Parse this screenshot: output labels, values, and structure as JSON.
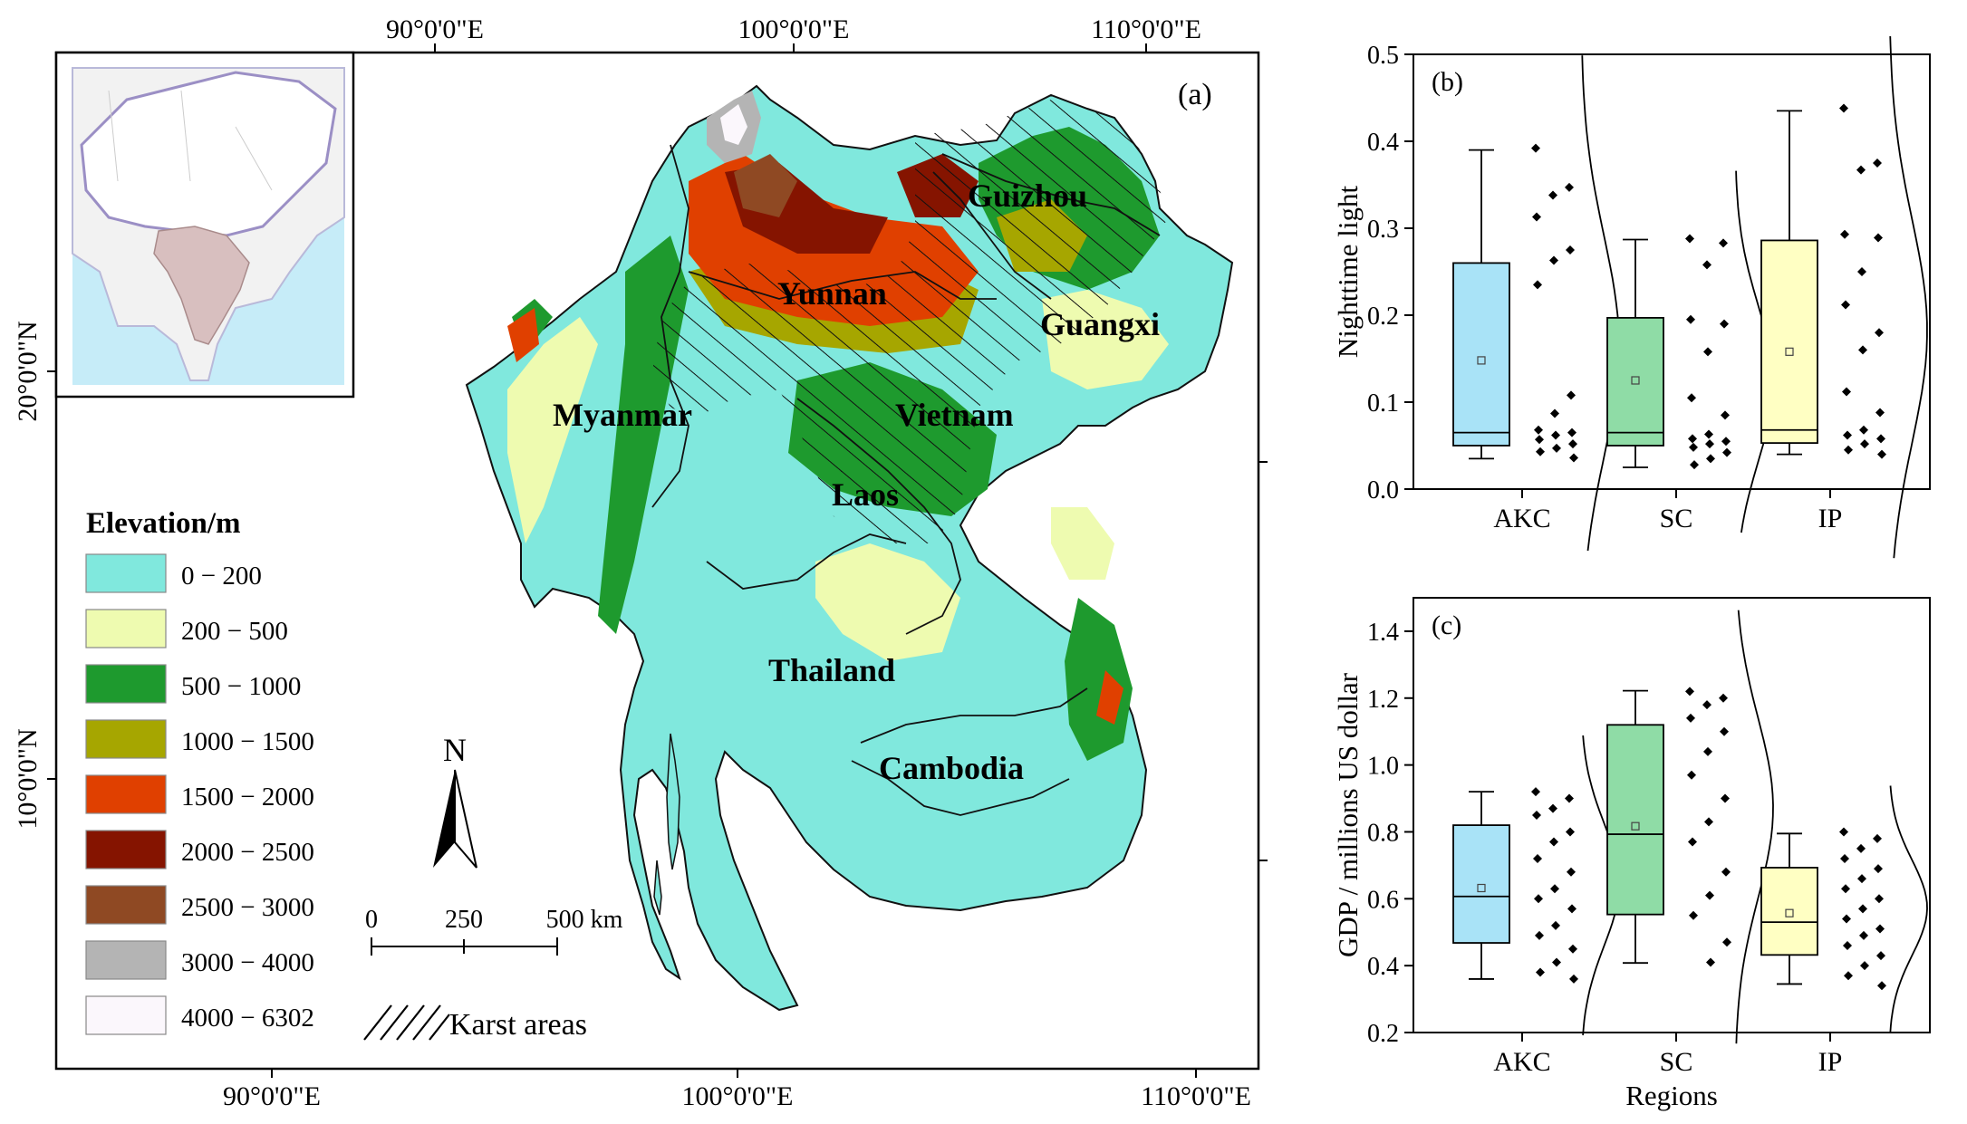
{
  "map": {
    "panel_label": "(a)",
    "lon_labels": [
      "90°0'0\"E",
      "100°0'0\"E",
      "110°0'0\"E"
    ],
    "lat_labels": [
      "20°0'0\"N",
      "10°0'0\"N"
    ],
    "regions": [
      {
        "id": "guizhou",
        "label": "Guizhou"
      },
      {
        "id": "yunnan",
        "label": "Yunnan"
      },
      {
        "id": "guangxi",
        "label": "Guangxi"
      },
      {
        "id": "myanmar",
        "label": "Myanmar"
      },
      {
        "id": "vietnam",
        "label": "Vietnam"
      },
      {
        "id": "laos",
        "label": "Laos"
      },
      {
        "id": "thailand",
        "label": "Thailand"
      },
      {
        "id": "cambodia",
        "label": "Cambodia"
      }
    ],
    "north_arrow": "N",
    "scale_bar": {
      "ticks": [
        "0",
        "250",
        "500 km"
      ]
    },
    "legend": {
      "title": "Elevation/m",
      "items": [
        {
          "label": "0 − 200",
          "color": "#80e8dd"
        },
        {
          "label": "200 − 500",
          "color": "#eefbb0"
        },
        {
          "label": "500 − 1000",
          "color": "#1e9a2e"
        },
        {
          "label": "1000 − 1500",
          "color": "#a6a600"
        },
        {
          "label": "1500 − 2000",
          "color": "#e04000"
        },
        {
          "label": "2000 − 2500",
          "color": "#851400"
        },
        {
          "label": "2500 − 3000",
          "color": "#8f4923"
        },
        {
          "label": "3000 − 4000",
          "color": "#b4b4b4"
        },
        {
          "label": "4000 − 6302",
          "color": "#fbf7fc"
        }
      ],
      "karst_label": "Karst areas"
    }
  },
  "chart_data": [
    {
      "type": "box",
      "panel": "(b)",
      "ylabel": "Nighttime light",
      "xlabel": "",
      "ylim": [
        0,
        0.5
      ],
      "yticks": [
        "0.0",
        "0.1",
        "0.2",
        "0.3",
        "0.4",
        "0.5"
      ],
      "categories": [
        "AKC",
        "SC",
        "IP"
      ],
      "colors": [
        "#a9e3f7",
        "#8fdca6",
        "#ffffc3"
      ],
      "boxes": [
        {
          "min": 0.035,
          "q1": 0.05,
          "median": 0.065,
          "q3": 0.26,
          "max": 0.39,
          "mean": 0.148
        },
        {
          "min": 0.025,
          "q1": 0.05,
          "median": 0.065,
          "q3": 0.197,
          "max": 0.287,
          "mean": 0.125
        },
        {
          "min": 0.04,
          "q1": 0.053,
          "median": 0.068,
          "q3": 0.286,
          "max": 0.435,
          "mean": 0.158
        }
      ],
      "points": [
        [
          0.392,
          0.347,
          0.338,
          0.313,
          0.275,
          0.263,
          0.235,
          0.108,
          0.087,
          0.068,
          0.065,
          0.062,
          0.057,
          0.052,
          0.047,
          0.043,
          0.036
        ],
        [
          0.288,
          0.283,
          0.258,
          0.195,
          0.19,
          0.158,
          0.105,
          0.085,
          0.063,
          0.058,
          0.055,
          0.052,
          0.048,
          0.042,
          0.035,
          0.028
        ],
        [
          0.438,
          0.375,
          0.367,
          0.293,
          0.289,
          0.25,
          0.212,
          0.18,
          0.16,
          0.112,
          0.088,
          0.068,
          0.062,
          0.058,
          0.052,
          0.045,
          0.04
        ]
      ]
    },
    {
      "type": "box",
      "panel": "(c)",
      "ylabel": "GDP / millions US dollar",
      "xlabel": "Regions",
      "ylim": [
        0.2,
        1.5
      ],
      "yticks": [
        "0.2",
        "0.4",
        "0.6",
        "0.8",
        "1.0",
        "1.2",
        "1.4"
      ],
      "categories": [
        "AKC",
        "SC",
        "IP"
      ],
      "colors": [
        "#a9e3f7",
        "#8fdca6",
        "#ffffc3"
      ],
      "boxes": [
        {
          "min": 0.36,
          "q1": 0.468,
          "median": 0.607,
          "q3": 0.82,
          "max": 0.92,
          "mean": 0.632
        },
        {
          "min": 0.408,
          "q1": 0.553,
          "median": 0.793,
          "q3": 1.12,
          "max": 1.222,
          "mean": 0.817
        },
        {
          "min": 0.345,
          "q1": 0.432,
          "median": 0.53,
          "q3": 0.693,
          "max": 0.795,
          "mean": 0.557
        }
      ],
      "points": [
        [
          0.92,
          0.9,
          0.87,
          0.85,
          0.8,
          0.77,
          0.72,
          0.68,
          0.63,
          0.6,
          0.57,
          0.52,
          0.49,
          0.45,
          0.41,
          0.38,
          0.36
        ],
        [
          1.22,
          1.2,
          1.18,
          1.14,
          1.1,
          1.04,
          0.97,
          0.9,
          0.83,
          0.77,
          0.68,
          0.61,
          0.55,
          0.47,
          0.41
        ],
        [
          0.8,
          0.78,
          0.75,
          0.72,
          0.69,
          0.66,
          0.63,
          0.6,
          0.57,
          0.54,
          0.51,
          0.49,
          0.46,
          0.43,
          0.4,
          0.37,
          0.34
        ]
      ]
    }
  ]
}
